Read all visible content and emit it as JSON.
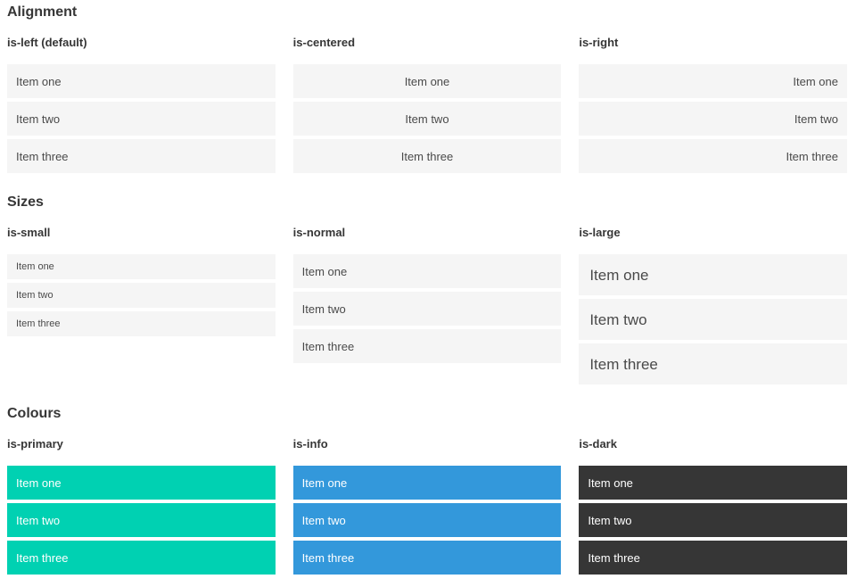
{
  "colors": {
    "primary": "#00d1b2",
    "info": "#3398db",
    "dark": "#363636",
    "item_bg": "#f5f5f5",
    "item_text": "#4a4a4a",
    "heading_text": "#363636",
    "colored_item_text": "#ffffff"
  },
  "sections": [
    {
      "title": "Alignment",
      "groups": [
        {
          "label": "is-left (default)",
          "items": [
            "Item one",
            "Item two",
            "Item three"
          ]
        },
        {
          "label": "is-centered",
          "items": [
            "Item one",
            "Item two",
            "Item three"
          ]
        },
        {
          "label": "is-right",
          "items": [
            "Item one",
            "Item two",
            "Item three"
          ]
        }
      ]
    },
    {
      "title": "Sizes",
      "groups": [
        {
          "label": "is-small",
          "items": [
            "Item one",
            "Item two",
            "Item three"
          ]
        },
        {
          "label": "is-normal",
          "items": [
            "Item one",
            "Item two",
            "Item three"
          ]
        },
        {
          "label": "is-large",
          "items": [
            "Item one",
            "Item two",
            "Item three"
          ]
        }
      ]
    },
    {
      "title": "Colours",
      "groups": [
        {
          "label": "is-primary",
          "items": [
            "Item one",
            "Item two",
            "Item three"
          ]
        },
        {
          "label": "is-info",
          "items": [
            "Item one",
            "Item two",
            "Item three"
          ]
        },
        {
          "label": "is-dark",
          "items": [
            "Item one",
            "Item two",
            "Item three"
          ]
        }
      ]
    }
  ]
}
